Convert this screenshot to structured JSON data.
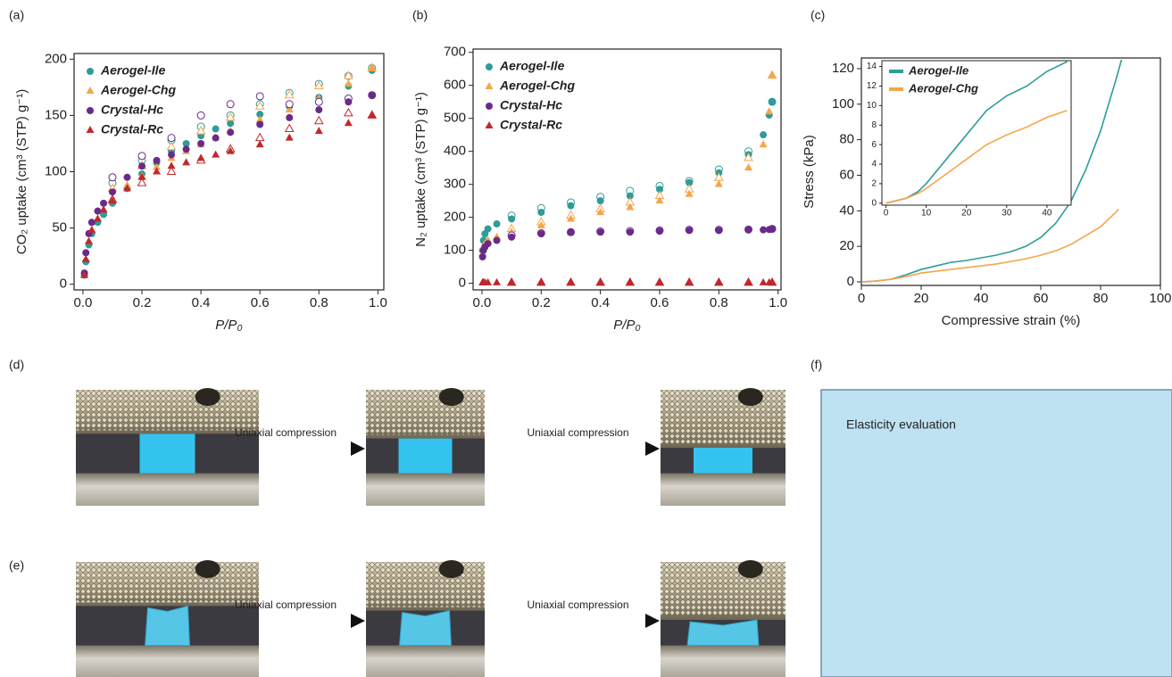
{
  "chart_data": [
    {
      "type": "scatter",
      "xlabel": "P/P₀",
      "ylabel": "CO₂ uptake (cm³ (STP) g⁻¹)",
      "xlim": [
        -0.03,
        1.02
      ],
      "ylim": [
        -5,
        205
      ],
      "xticks": [
        {
          "value": 0,
          "label": "0.0"
        },
        0.2,
        0.4,
        0.6,
        0.8,
        {
          "value": 1,
          "label": "1.0"
        }
      ],
      "yticks": [
        0,
        50,
        100,
        150,
        200
      ],
      "legend": "upper left",
      "x": [
        0.005,
        0.01,
        0.02,
        0.03,
        0.05,
        0.07,
        0.1,
        0.15,
        0.2,
        0.25,
        0.3,
        0.35,
        0.4,
        0.45,
        0.5,
        0.6,
        0.7,
        0.8,
        0.9,
        0.98
      ],
      "desorption_x": [
        0.98,
        0.9,
        0.8,
        0.7,
        0.6,
        0.5,
        0.4,
        0.3,
        0.2,
        0.1
      ],
      "series": [
        {
          "name": "Aerogel-Ile",
          "color": "#2e9c98",
          "marker": "circle",
          "values": [
            8,
            20,
            35,
            45,
            55,
            62,
            72,
            85,
            98,
            108,
            118,
            125,
            132,
            138,
            143,
            151,
            158,
            166,
            176,
            190
          ],
          "desorption": [
            192,
            185,
            178,
            170,
            160,
            150,
            140,
            128,
            110,
            90
          ]
        },
        {
          "name": "Aerogel-Chg",
          "color": "#f5a54a",
          "marker": "triangle",
          "values": [
            8,
            22,
            38,
            48,
            58,
            66,
            76,
            88,
            96,
            104,
            112,
            118,
            124,
            130,
            136,
            146,
            155,
            165,
            178,
            192
          ],
          "desorption": [
            192,
            185,
            176,
            168,
            158,
            148,
            136,
            122,
            105,
            85
          ]
        },
        {
          "name": "Crystal-Hc",
          "color": "#6b2a8a",
          "marker": "circle",
          "values": [
            10,
            28,
            45,
            55,
            65,
            72,
            82,
            95,
            105,
            110,
            115,
            120,
            125,
            130,
            135,
            142,
            148,
            155,
            162,
            168
          ],
          "desorption": [
            168,
            165,
            162,
            160,
            167,
            160,
            150,
            130,
            114,
            95
          ]
        },
        {
          "name": "Crystal-Rc",
          "color": "#c0282d",
          "marker": "triangle",
          "values": [
            8,
            22,
            38,
            48,
            58,
            66,
            74,
            85,
            95,
            100,
            105,
            108,
            112,
            115,
            118,
            124,
            130,
            136,
            143,
            150
          ],
          "desorption": [
            150,
            152,
            145,
            138,
            130,
            120,
            110,
            100,
            90,
            75
          ]
        }
      ]
    },
    {
      "type": "scatter",
      "xlabel": "P/P₀",
      "ylabel": "N₂ uptake (cm³ (STP) g⁻¹)",
      "xlim": [
        -0.03,
        1.01
      ],
      "ylim": [
        -20,
        710
      ],
      "xticks": [
        {
          "value": 0,
          "label": "0.0"
        },
        0.2,
        0.4,
        0.6,
        0.8,
        {
          "value": 1,
          "label": "1.0"
        }
      ],
      "yticks": [
        0,
        100,
        200,
        300,
        400,
        500,
        600,
        700
      ],
      "legend": "upper left",
      "x": [
        0.002,
        0.005,
        0.01,
        0.02,
        0.05,
        0.1,
        0.2,
        0.3,
        0.4,
        0.5,
        0.6,
        0.7,
        0.8,
        0.9,
        0.95,
        0.97,
        0.98
      ],
      "desorption_x": [
        0.98,
        0.9,
        0.8,
        0.7,
        0.6,
        0.5,
        0.4,
        0.3,
        0.2,
        0.1
      ],
      "series": [
        {
          "name": "Aerogel-Ile",
          "color": "#2e9c98",
          "marker": "circle",
          "values": [
            100,
            130,
            150,
            165,
            180,
            195,
            215,
            235,
            250,
            265,
            285,
            305,
            335,
            390,
            450,
            510,
            550
          ],
          "desorption": [
            550,
            400,
            345,
            310,
            295,
            280,
            262,
            245,
            228,
            205
          ]
        },
        {
          "name": "Aerogel-Chg",
          "color": "#f5a54a",
          "marker": "triangle",
          "values": [
            90,
            110,
            120,
            130,
            140,
            155,
            175,
            195,
            215,
            230,
            250,
            270,
            300,
            350,
            420,
            520,
            630
          ],
          "desorption": [
            630,
            380,
            320,
            285,
            265,
            245,
            225,
            205,
            185,
            165
          ]
        },
        {
          "name": "Crystal-Hc",
          "color": "#6b2a8a",
          "marker": "circle",
          "values": [
            80,
            100,
            110,
            120,
            130,
            140,
            150,
            155,
            155,
            155,
            158,
            160,
            160,
            162,
            162,
            163,
            165
          ],
          "desorption": [
            165,
            163,
            162,
            162,
            160,
            158,
            157,
            155,
            152,
            145
          ]
        },
        {
          "name": "Crystal-Rc",
          "color": "#c0282d",
          "marker": "triangle",
          "values": [
            2,
            2,
            2,
            2,
            2,
            2,
            2,
            2,
            2,
            2,
            2,
            2,
            2,
            2,
            2,
            2,
            2
          ],
          "desorption": [
            2,
            2,
            2,
            2,
            2,
            2,
            2,
            2,
            2,
            2
          ]
        }
      ]
    },
    {
      "type": "line",
      "xlabel": "Compressive strain (%)",
      "ylabel": "Stress (kPa)",
      "xlim": [
        0,
        100
      ],
      "ylim": [
        -2,
        126
      ],
      "xticks": [
        0,
        20,
        40,
        60,
        80,
        100
      ],
      "yticks": [
        0,
        20,
        40,
        60,
        80,
        100,
        120
      ],
      "series": [
        {
          "name": "Aerogel-Ile",
          "color": "#2e9c98",
          "x": [
            0,
            5,
            10,
            15,
            20,
            25,
            30,
            35,
            40,
            45,
            50,
            55,
            60,
            65,
            70,
            75,
            80,
            85,
            87
          ],
          "values": [
            0,
            0.5,
            1.5,
            4,
            7,
            9,
            11,
            12,
            13.5,
            15,
            17,
            20,
            25,
            33,
            45,
            63,
            85,
            113,
            125
          ]
        },
        {
          "name": "Aerogel-Chg",
          "color": "#f5a54a",
          "x": [
            0,
            5,
            10,
            15,
            20,
            25,
            30,
            35,
            40,
            45,
            50,
            55,
            60,
            65,
            70,
            75,
            80,
            85,
            86
          ],
          "values": [
            0,
            0.5,
            1.5,
            3,
            5,
            6,
            7,
            8,
            9,
            10,
            11.5,
            13,
            15,
            17.5,
            21,
            26,
            31,
            39,
            41
          ]
        }
      ],
      "inset": {
        "xlim": [
          -1,
          46
        ],
        "ylim": [
          -0.2,
          14.6
        ],
        "xticks": [
          0,
          10,
          20,
          30,
          40
        ],
        "yticks": [
          0,
          2,
          4,
          6,
          8,
          10,
          12,
          14
        ],
        "legend": "upper left",
        "x": [
          0,
          5,
          8,
          10,
          15,
          20,
          25,
          30,
          35,
          40,
          45
        ],
        "series": [
          {
            "name": "Aerogel-Ile",
            "color": "#2e9c98",
            "values": [
              0,
              0.5,
              1.2,
              2,
              4.5,
              7,
              9.5,
              11,
              12,
              13.5,
              14.5
            ]
          },
          {
            "name": "Aerogel-Chg",
            "color": "#f5a54a",
            "values": [
              0,
              0.5,
              1,
              1.5,
              3,
              4.5,
              6,
              7,
              7.8,
              8.8,
              9.5
            ]
          }
        ]
      }
    }
  ],
  "panels": {
    "labels": [
      "(a)",
      "(b)",
      "(c)",
      "(d)",
      "(e)",
      "(f)"
    ],
    "d": {
      "arrows": [
        "Uniaxial compression",
        "Uniaxial compression"
      ]
    },
    "e": {
      "arrows": [
        "Uniaxial compression",
        "Uniaxial compression"
      ]
    },
    "f": {
      "title": "Elasticity evaluation"
    }
  }
}
